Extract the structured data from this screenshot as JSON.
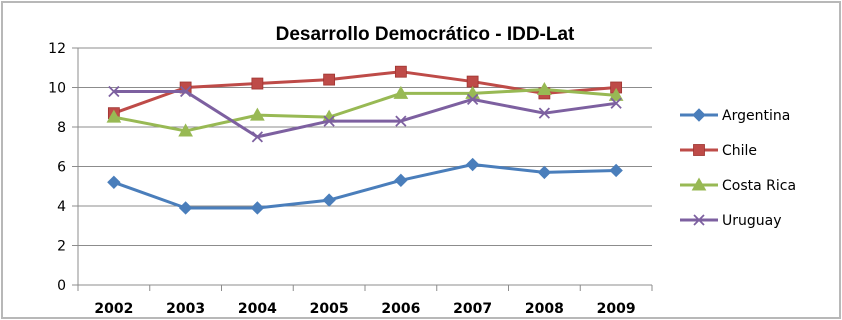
{
  "chart_data": {
    "type": "line",
    "title": "Desarrollo Democrático - IDD-Lat",
    "xlabel": "",
    "ylabel": "",
    "categories": [
      "2002",
      "2003",
      "2004",
      "2005",
      "2006",
      "2007",
      "2008",
      "2009"
    ],
    "ylim": [
      0,
      12
    ],
    "yticks": [
      0,
      2,
      4,
      6,
      8,
      10,
      12
    ],
    "grid": true,
    "legend_position": "right",
    "series": [
      {
        "name": "Argentina",
        "color": "#4a7ebb",
        "marker": "diamond",
        "values": [
          5.2,
          3.9,
          3.9,
          4.3,
          5.3,
          6.1,
          5.7,
          5.8
        ]
      },
      {
        "name": "Chile",
        "color": "#be4b48",
        "marker": "square",
        "values": [
          8.7,
          10.0,
          10.2,
          10.4,
          10.8,
          10.3,
          9.7,
          10.0
        ]
      },
      {
        "name": "Costa Rica",
        "color": "#98b954",
        "marker": "triangle",
        "values": [
          8.5,
          7.8,
          8.6,
          8.5,
          9.7,
          9.7,
          9.9,
          9.6
        ]
      },
      {
        "name": "Uruguay",
        "color": "#7d60a0",
        "marker": "x",
        "values": [
          9.8,
          9.8,
          7.5,
          8.3,
          8.3,
          9.4,
          8.7,
          9.2
        ]
      }
    ]
  }
}
